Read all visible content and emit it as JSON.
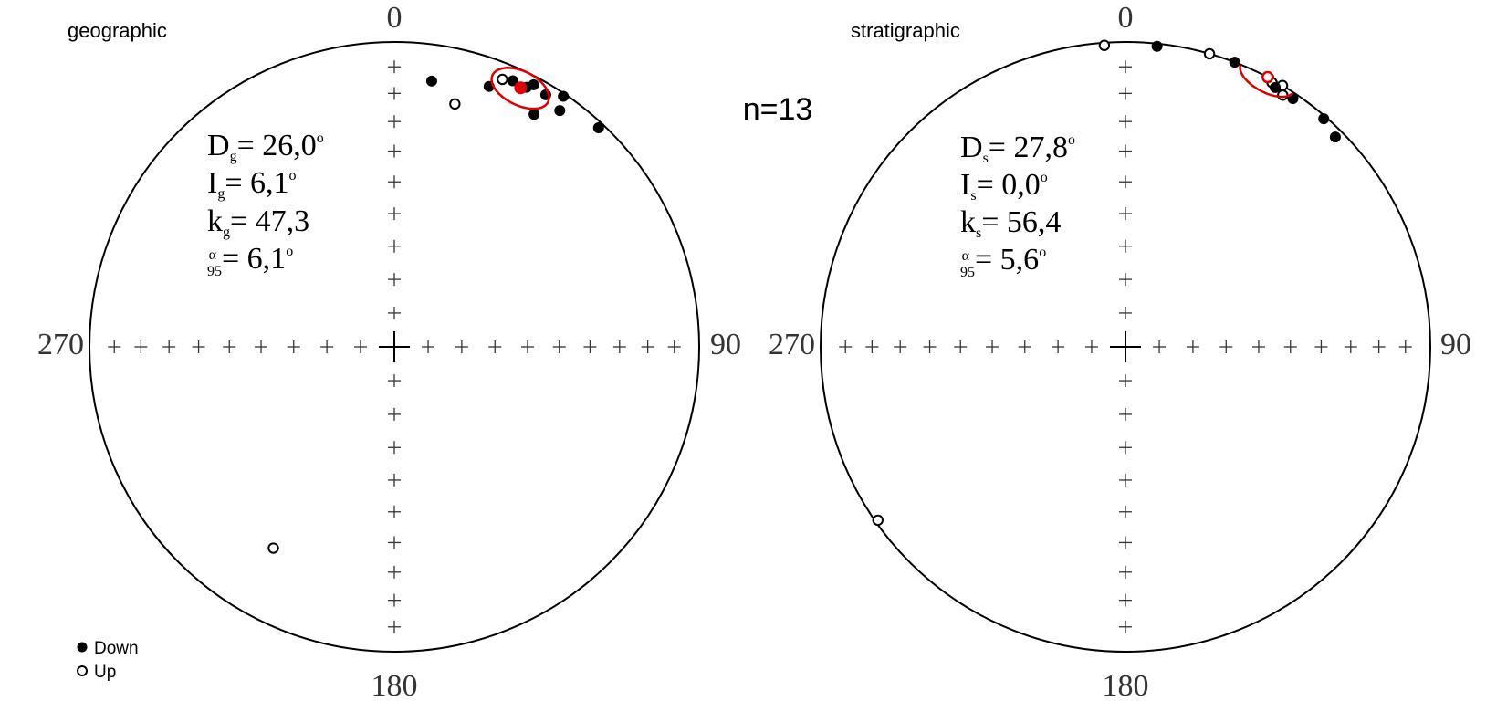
{
  "figure": {
    "count_label": "n=13",
    "legend": {
      "down_label": "Down",
      "up_label": "Up"
    }
  },
  "chart_data": [
    {
      "type": "scatter",
      "projection": "equal-area stereonet",
      "title": "geographic",
      "direction_labels": {
        "north": "0",
        "east": "90",
        "south": "180",
        "west": "270"
      },
      "stats": {
        "D": {
          "symbol": "D",
          "sub": "g",
          "value": "= 26,0",
          "unit": "o"
        },
        "I": {
          "symbol": "I",
          "sub": "g",
          "value": "= 6,1",
          "unit": "o"
        },
        "k": {
          "symbol": "k",
          "sub": "g",
          "value": "= 47,3",
          "unit": ""
        },
        "a95": {
          "symbol": "α",
          "sub": "95",
          "value": "= 6,1",
          "unit": "o"
        }
      },
      "mean": {
        "dec": 26.0,
        "inc": 6.1,
        "a95": 6.1,
        "hemisphere": "down",
        "color": "#e00000"
      },
      "points": [
        {
          "dec": 8,
          "inc": 13,
          "hemisphere": "down"
        },
        {
          "dec": 20,
          "inc": 10,
          "hemisphere": "down"
        },
        {
          "dec": 22,
          "inc": 6,
          "hemisphere": "up"
        },
        {
          "dec": 24,
          "inc": 5,
          "hemisphere": "down"
        },
        {
          "dec": 27,
          "inc": 5,
          "hemisphere": "down"
        },
        {
          "dec": 28,
          "inc": 3,
          "hemisphere": "down"
        },
        {
          "dec": 31,
          "inc": 4,
          "hemisphere": "down"
        },
        {
          "dec": 34,
          "inc": 1,
          "hemisphere": "down"
        },
        {
          "dec": 43,
          "inc": 2,
          "hemisphere": "down"
        },
        {
          "dec": 35,
          "inc": 6,
          "hemisphere": "down"
        },
        {
          "dec": 31,
          "inc": 12,
          "hemisphere": "down"
        },
        {
          "dec": 14,
          "inc": 19,
          "hemisphere": "up"
        },
        {
          "dec": 211,
          "inc": 24,
          "hemisphere": "up"
        }
      ]
    },
    {
      "type": "scatter",
      "projection": "equal-area stereonet",
      "title": "stratigraphic",
      "direction_labels": {
        "north": "0",
        "east": "90",
        "south": "180",
        "west": "270"
      },
      "stats": {
        "D": {
          "symbol": "D",
          "sub": "s",
          "value": "= 27,8",
          "unit": "o"
        },
        "I": {
          "symbol": "I",
          "sub": "s",
          "value": "=  0,0",
          "unit": "o"
        },
        "k": {
          "symbol": "k",
          "sub": "s",
          "value": "= 56,4",
          "unit": ""
        },
        "a95": {
          "symbol": "α",
          "sub": "95",
          "value": "= 5,6",
          "unit": "o"
        }
      },
      "mean": {
        "dec": 27.8,
        "inc": 0.0,
        "a95": 5.6,
        "hemisphere": "up",
        "color": "#e00000"
      },
      "points": [
        {
          "dec": 356,
          "inc": 1,
          "hemisphere": "up"
        },
        {
          "dec": 6,
          "inc": 1,
          "hemisphere": "down"
        },
        {
          "dec": 16,
          "inc": 0,
          "hemisphere": "up"
        },
        {
          "dec": 21,
          "inc": 0,
          "hemisphere": "down"
        },
        {
          "dec": 28,
          "inc": 0,
          "hemisphere": "up"
        },
        {
          "dec": 29,
          "inc": 1,
          "hemisphere": "up"
        },
        {
          "dec": 31,
          "inc": 0,
          "hemisphere": "up"
        },
        {
          "dec": 30,
          "inc": 2,
          "hemisphere": "down"
        },
        {
          "dec": 32,
          "inc": 3,
          "hemisphere": "up"
        },
        {
          "dec": 41,
          "inc": 1,
          "hemisphere": "down"
        },
        {
          "dec": 45,
          "inc": 3,
          "hemisphere": "down"
        },
        {
          "dec": 34,
          "inc": 2,
          "hemisphere": "down"
        },
        {
          "dec": 235,
          "inc": 1,
          "hemisphere": "up"
        }
      ]
    }
  ]
}
